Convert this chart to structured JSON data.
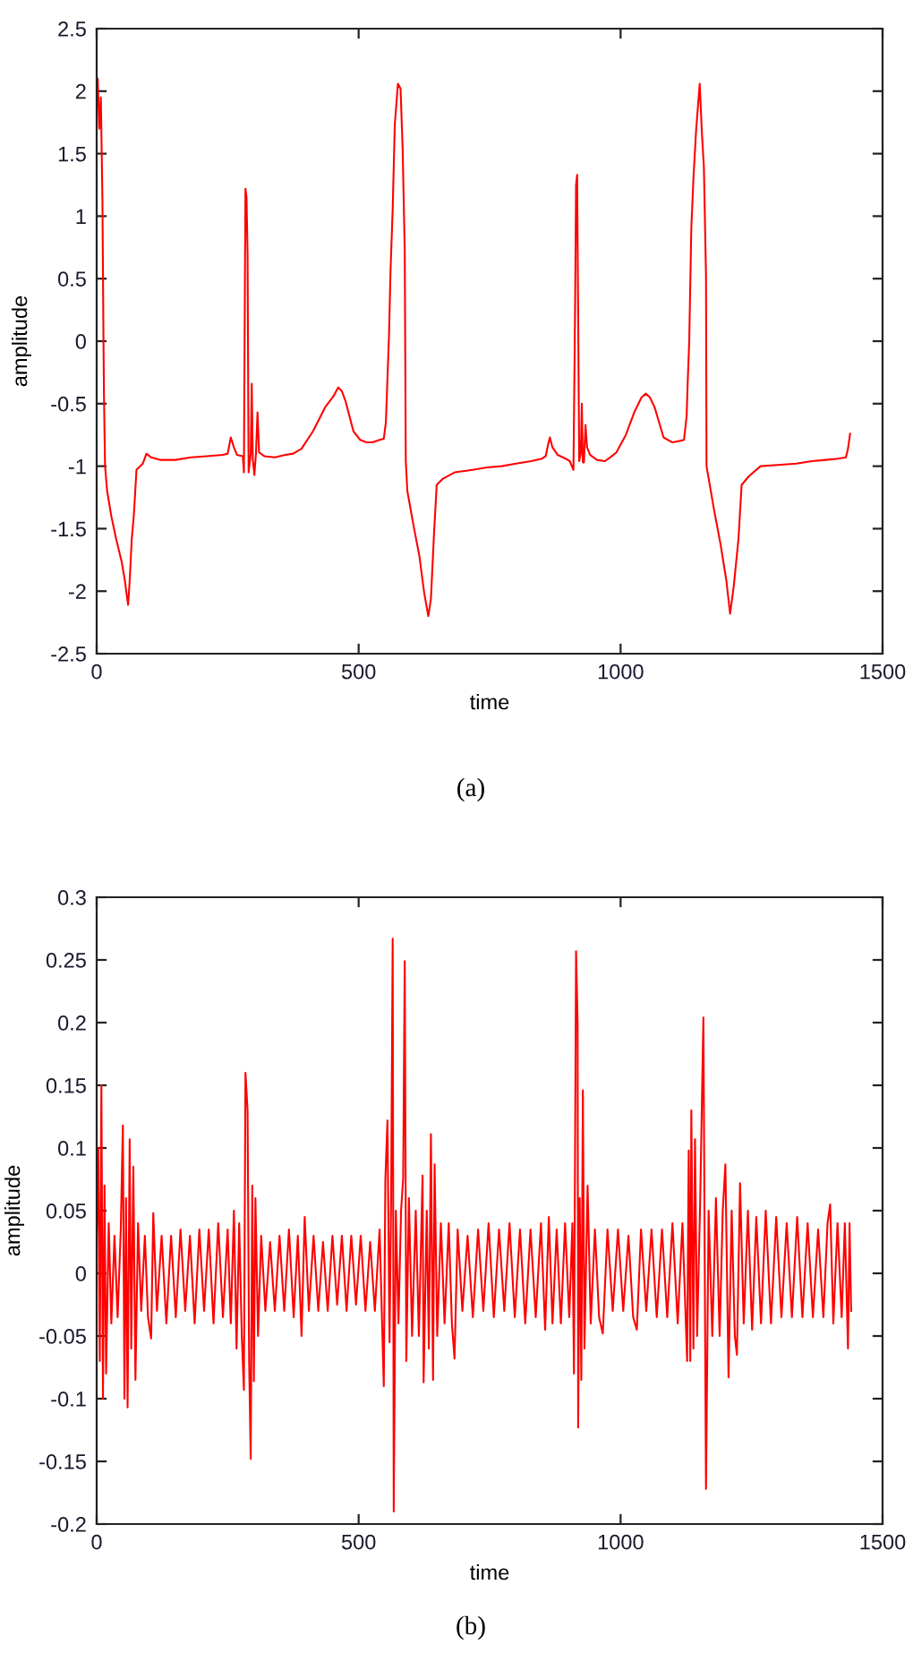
{
  "chart_data": [
    {
      "type": "line",
      "xlabel": "time",
      "ylabel": "amplitude",
      "xlim": [
        0,
        1500
      ],
      "xticks": [
        0,
        500,
        1000,
        1500
      ],
      "ylim": [
        -2.5,
        2.5
      ],
      "yticks": [
        -2.5,
        -2,
        -1.5,
        -1,
        -0.5,
        0,
        0.5,
        1,
        1.5,
        2,
        2.5
      ],
      "annotations": [
        "(a)"
      ],
      "series": [
        {
          "color": "#ff0000",
          "x": [
            0,
            2,
            5,
            8,
            11,
            13,
            14,
            16,
            20,
            28,
            37,
            48,
            54,
            58,
            60,
            63,
            65,
            67,
            71,
            76,
            88,
            95,
            104,
            121,
            150,
            180,
            210,
            240,
            250,
            256,
            262,
            268,
            279,
            281,
            283,
            284,
            286,
            288,
            290,
            294,
            296,
            298,
            301,
            304,
            307,
            310,
            320,
            340,
            360,
            375,
            391,
            413,
            436,
            452,
            461,
            468,
            475,
            490,
            503,
            515,
            526,
            540,
            548,
            552,
            555,
            558,
            561,
            565,
            569,
            575,
            580,
            584,
            588,
            590,
            593,
            605,
            616,
            625,
            633,
            638,
            644,
            649,
            661,
            683,
            717,
            745,
            773,
            800,
            829,
            850,
            857,
            862,
            865,
            870,
            880,
            895,
            903,
            910,
            913,
            915,
            917,
            919,
            921,
            924,
            926,
            928,
            930,
            933,
            936,
            942,
            955,
            970,
            980,
            992,
            1010,
            1026,
            1040,
            1048,
            1056,
            1065,
            1082,
            1099,
            1110,
            1121,
            1126,
            1128,
            1131,
            1135,
            1139,
            1144,
            1151,
            1155,
            1159,
            1163,
            1164,
            1178,
            1191,
            1202,
            1209,
            1216,
            1225,
            1231,
            1245,
            1267,
            1300,
            1335,
            1365,
            1391,
            1415,
            1430,
            1434,
            1438
          ],
          "values": [
            1.9,
            2.1,
            1.7,
            1.95,
            1.13,
            0.0,
            -0.45,
            -1.0,
            -1.2,
            -1.4,
            -1.58,
            -1.77,
            -1.92,
            -2.05,
            -2.11,
            -1.92,
            -1.75,
            -1.58,
            -1.39,
            -1.03,
            -0.98,
            -0.9,
            -0.93,
            -0.95,
            -0.95,
            -0.93,
            -0.92,
            -0.91,
            -0.9,
            -0.77,
            -0.85,
            -0.91,
            -0.92,
            -1.05,
            0.5,
            1.22,
            1.15,
            0.7,
            -1.05,
            -0.9,
            -0.34,
            -0.95,
            -1.07,
            -0.9,
            -0.57,
            -0.89,
            -0.92,
            -0.93,
            -0.91,
            -0.9,
            -0.86,
            -0.72,
            -0.53,
            -0.44,
            -0.37,
            -0.4,
            -0.48,
            -0.72,
            -0.79,
            -0.81,
            -0.81,
            -0.79,
            -0.78,
            -0.65,
            -0.3,
            0.05,
            0.58,
            1.06,
            1.73,
            2.06,
            2.02,
            1.54,
            0.72,
            -0.96,
            -1.2,
            -1.48,
            -1.72,
            -2.01,
            -2.2,
            -2.06,
            -1.53,
            -1.15,
            -1.1,
            -1.05,
            -1.03,
            -1.01,
            -1.0,
            -0.98,
            -0.96,
            -0.94,
            -0.92,
            -0.82,
            -0.77,
            -0.85,
            -0.91,
            -0.94,
            -0.96,
            -1.03,
            0.2,
            1.25,
            1.33,
            0.2,
            -0.96,
            -0.9,
            -0.5,
            -0.97,
            -0.97,
            -0.67,
            -0.85,
            -0.91,
            -0.95,
            -0.96,
            -0.93,
            -0.89,
            -0.75,
            -0.57,
            -0.45,
            -0.42,
            -0.45,
            -0.53,
            -0.77,
            -0.81,
            -0.8,
            -0.79,
            -0.6,
            -0.34,
            0.0,
            0.91,
            1.3,
            1.68,
            2.06,
            1.68,
            1.39,
            0.53,
            -1.0,
            -1.34,
            -1.63,
            -1.92,
            -2.18,
            -1.96,
            -1.58,
            -1.15,
            -1.08,
            -1.0,
            -0.99,
            -0.98,
            -0.96,
            -0.95,
            -0.94,
            -0.93,
            -0.86,
            -0.74
          ]
        }
      ]
    },
    {
      "type": "line",
      "xlabel": "time",
      "ylabel": "amplitude",
      "xlim": [
        0,
        1500
      ],
      "xticks": [
        0,
        500,
        1000,
        1500
      ],
      "ylim": [
        -0.2,
        0.3
      ],
      "yticks": [
        -0.2,
        -0.15,
        -0.1,
        -0.05,
        0,
        0.05,
        0.1,
        0.15,
        0.2,
        0.25,
        0.3
      ],
      "annotations": [
        "(b)"
      ],
      "series": [
        {
          "color": "#ff0000",
          "x": [
            0,
            3,
            6,
            9,
            12,
            15,
            18,
            23,
            28,
            34,
            40,
            46,
            50,
            53,
            56,
            59,
            63,
            66,
            70,
            74,
            79,
            85,
            92,
            98,
            104,
            108,
            115,
            124,
            133,
            142,
            151,
            160,
            169,
            178,
            187,
            196,
            205,
            214,
            223,
            232,
            241,
            250,
            256,
            262,
            267,
            272,
            277,
            281,
            284,
            288,
            291,
            294,
            297,
            300,
            303,
            308,
            314,
            322,
            331,
            340,
            349,
            358,
            367,
            376,
            384,
            391,
            397,
            405,
            414,
            423,
            432,
            441,
            450,
            459,
            468,
            477,
            486,
            495,
            504,
            513,
            522,
            531,
            540,
            548,
            551,
            555,
            559,
            562,
            565,
            567,
            571,
            576,
            581,
            585,
            588,
            591,
            596,
            602,
            609,
            615,
            622,
            624,
            630,
            634,
            638,
            642,
            645,
            650,
            657,
            664,
            672,
            678,
            683,
            689,
            698,
            708,
            718,
            728,
            738,
            748,
            758,
            768,
            778,
            788,
            798,
            808,
            818,
            828,
            838,
            848,
            856,
            863,
            870,
            878,
            886,
            894,
            902,
            908,
            911,
            915,
            918,
            919,
            922,
            925,
            928,
            931,
            937,
            943,
            951,
            959,
            966,
            975,
            985,
            995,
            1005,
            1015,
            1024,
            1031,
            1039,
            1049,
            1059,
            1069,
            1079,
            1089,
            1099,
            1109,
            1118,
            1127,
            1130,
            1133,
            1135,
            1139,
            1142,
            1146,
            1152,
            1158,
            1163,
            1168,
            1175,
            1182,
            1189,
            1195,
            1200,
            1206,
            1212,
            1218,
            1222,
            1228,
            1235,
            1243,
            1251,
            1259,
            1268,
            1277,
            1287,
            1297,
            1307,
            1317,
            1327,
            1337,
            1347,
            1357,
            1367,
            1377,
            1387,
            1395,
            1400,
            1406,
            1414,
            1422,
            1428,
            1434,
            1437,
            1440
          ],
          "values": [
            0.03,
            0.1,
            -0.07,
            0.15,
            -0.1,
            0.07,
            -0.08,
            0.04,
            -0.04,
            0.03,
            -0.035,
            0.035,
            0.118,
            -0.1,
            0.06,
            -0.107,
            0.107,
            -0.06,
            0.085,
            -0.085,
            0.04,
            -0.03,
            0.03,
            -0.035,
            -0.052,
            0.048,
            -0.03,
            0.03,
            -0.04,
            0.03,
            -0.035,
            0.035,
            -0.03,
            0.03,
            -0.04,
            0.035,
            -0.03,
            0.035,
            -0.04,
            0.04,
            -0.035,
            0.035,
            -0.04,
            0.05,
            -0.06,
            0.04,
            -0.05,
            -0.093,
            0.16,
            0.13,
            -0.07,
            -0.148,
            0.07,
            -0.086,
            0.06,
            -0.05,
            0.03,
            -0.03,
            0.025,
            -0.03,
            0.03,
            -0.03,
            0.035,
            -0.035,
            0.03,
            -0.05,
            0.045,
            -0.03,
            0.03,
            -0.03,
            0.025,
            -0.03,
            0.03,
            -0.025,
            0.03,
            -0.03,
            0.03,
            -0.025,
            0.03,
            -0.03,
            0.025,
            -0.03,
            0.035,
            -0.09,
            0.075,
            0.122,
            -0.055,
            0.06,
            0.267,
            -0.19,
            0.05,
            -0.04,
            0.05,
            0.076,
            0.249,
            -0.07,
            0.06,
            -0.05,
            0.05,
            -0.05,
            0.078,
            -0.087,
            0.05,
            -0.06,
            0.111,
            -0.085,
            0.087,
            -0.05,
            0.04,
            -0.04,
            0.04,
            -0.04,
            -0.068,
            0.035,
            -0.03,
            0.03,
            -0.035,
            0.035,
            -0.03,
            0.04,
            -0.035,
            0.035,
            -0.03,
            0.04,
            -0.035,
            0.035,
            -0.04,
            0.035,
            -0.035,
            0.04,
            -0.045,
            0.045,
            -0.04,
            0.035,
            -0.04,
            0.04,
            -0.035,
            0.04,
            -0.08,
            0.257,
            0.198,
            -0.123,
            0.06,
            -0.085,
            0.146,
            -0.06,
            0.07,
            -0.04,
            0.035,
            -0.035,
            -0.048,
            0.035,
            -0.03,
            0.035,
            -0.03,
            0.03,
            -0.035,
            -0.045,
            0.035,
            -0.03,
            0.035,
            -0.035,
            0.035,
            -0.035,
            0.04,
            -0.04,
            0.04,
            -0.07,
            0.098,
            -0.07,
            0.13,
            -0.06,
            0.107,
            -0.05,
            0.06,
            0.204,
            -0.172,
            0.05,
            -0.05,
            0.06,
            -0.05,
            0.05,
            0.087,
            -0.083,
            0.05,
            -0.05,
            -0.065,
            0.072,
            -0.04,
            0.05,
            -0.045,
            0.045,
            -0.04,
            0.05,
            -0.04,
            0.045,
            -0.035,
            0.04,
            -0.035,
            0.045,
            -0.035,
            0.04,
            -0.035,
            0.035,
            -0.035,
            0.04,
            0.055,
            -0.04,
            0.04,
            -0.035,
            0.04,
            -0.06,
            0.04,
            -0.03
          ]
        }
      ]
    }
  ]
}
